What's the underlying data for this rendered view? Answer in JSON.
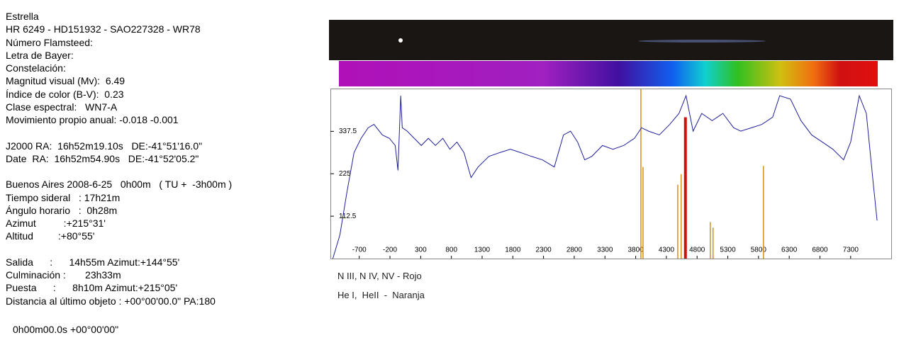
{
  "info": [
    [
      "Estrella",
      "HR 6249 - HD151932 - SAO227328 - WR78",
      "Número Flamsteed:",
      "Letra de Bayer:",
      "Constelación:",
      "Magnitud visual (Mv):  6.49",
      "Índice de color (B-V):  0.23",
      "Clase espectral:   WN7-A",
      "Movimiento propio anual: -0.018 -0.001"
    ],
    [
      "J2000 RA:  16h52m19.10s   DE:-41°51'16.0\"",
      "Date  RA:  16h52m54.90s   DE:-41°52'05.2\""
    ],
    [
      "Buenos Aires 2008-6-25   0h00m   ( TU +  -3h00m )",
      "Tiempo sideral   : 17h21m",
      "Ángulo horario   :  0h28m",
      "Azimut          :+215°31'",
      "Altitud         :+80°55'"
    ],
    [
      "Salida      :      14h55m Azimut:+144°55'",
      "Culminación :       23h33m",
      "Puesta      :      8h10m Azimut:+215°05'",
      "Distancia al último objeto : +00°00'00.0\" PA:180"
    ]
  ],
  "notes": [
    "N III, N IV, NV - Rojo",
    "He I,  HeII  -  Naranja"
  ],
  "footer": "0h00m00.0s +00°00'00\"",
  "chart_data": {
    "type": "line",
    "x": [
      -1130,
      -1015,
      -900,
      -785,
      -670,
      -555,
      -460,
      -325,
      -210,
      -115,
      -70,
      -25,
      0,
      80,
      195,
      310,
      425,
      540,
      660,
      775,
      890,
      1005,
      1120,
      1235,
      1410,
      1585,
      1760,
      1930,
      2105,
      2280,
      2475,
      2625,
      2740,
      2855,
      2970,
      3085,
      3260,
      3430,
      3605,
      3780,
      3895,
      4010,
      4185,
      4355,
      4505,
      4620,
      4735,
      4875,
      5045,
      5220,
      5395,
      5510,
      5685,
      5855,
      6030,
      6145,
      6320,
      6490,
      6665,
      6840,
      7010,
      7185,
      7300,
      7440,
      7555,
      7670,
      7730
    ],
    "series": [
      {
        "color": "#1f1f9a",
        "values": [
          0,
          63,
          177,
          281,
          319,
          347,
          356,
          328,
          319,
          300,
          234,
          432,
          347,
          338,
          319,
          300,
          319,
          300,
          319,
          290,
          309,
          281,
          215,
          243,
          271,
          281,
          290,
          281,
          271,
          262,
          243,
          328,
          338,
          309,
          262,
          271,
          300,
          290,
          300,
          319,
          347,
          338,
          328,
          356,
          385,
          432,
          338,
          385,
          366,
          385,
          347,
          338,
          347,
          356,
          375,
          432,
          423,
          366,
          328,
          309,
          290,
          262,
          309,
          432,
          385,
          196,
          101
        ]
      }
    ],
    "spectral_lines": {
      "x": [
        3885,
        3920,
        4485,
        4540,
        4610,
        5015,
        5060,
        5880
      ],
      "values": [
        450,
        243,
        196,
        224,
        375,
        97,
        82,
        246
      ],
      "colors": [
        "#d4901c",
        "#d4901c",
        "#d4901c",
        "#d4901c",
        "#d01010",
        "#d4901c",
        "#d4901c",
        "#d4901c"
      ]
    },
    "xlim": [
      -1170,
      7960
    ],
    "ylim": [
      0,
      451
    ],
    "xticks": [
      -700,
      -200,
      300,
      800,
      1300,
      1800,
      2300,
      2800,
      3300,
      3800,
      4300,
      4800,
      5300,
      5800,
      6300,
      6800,
      7300
    ],
    "yticks": [
      112.5,
      225,
      337.5
    ]
  }
}
